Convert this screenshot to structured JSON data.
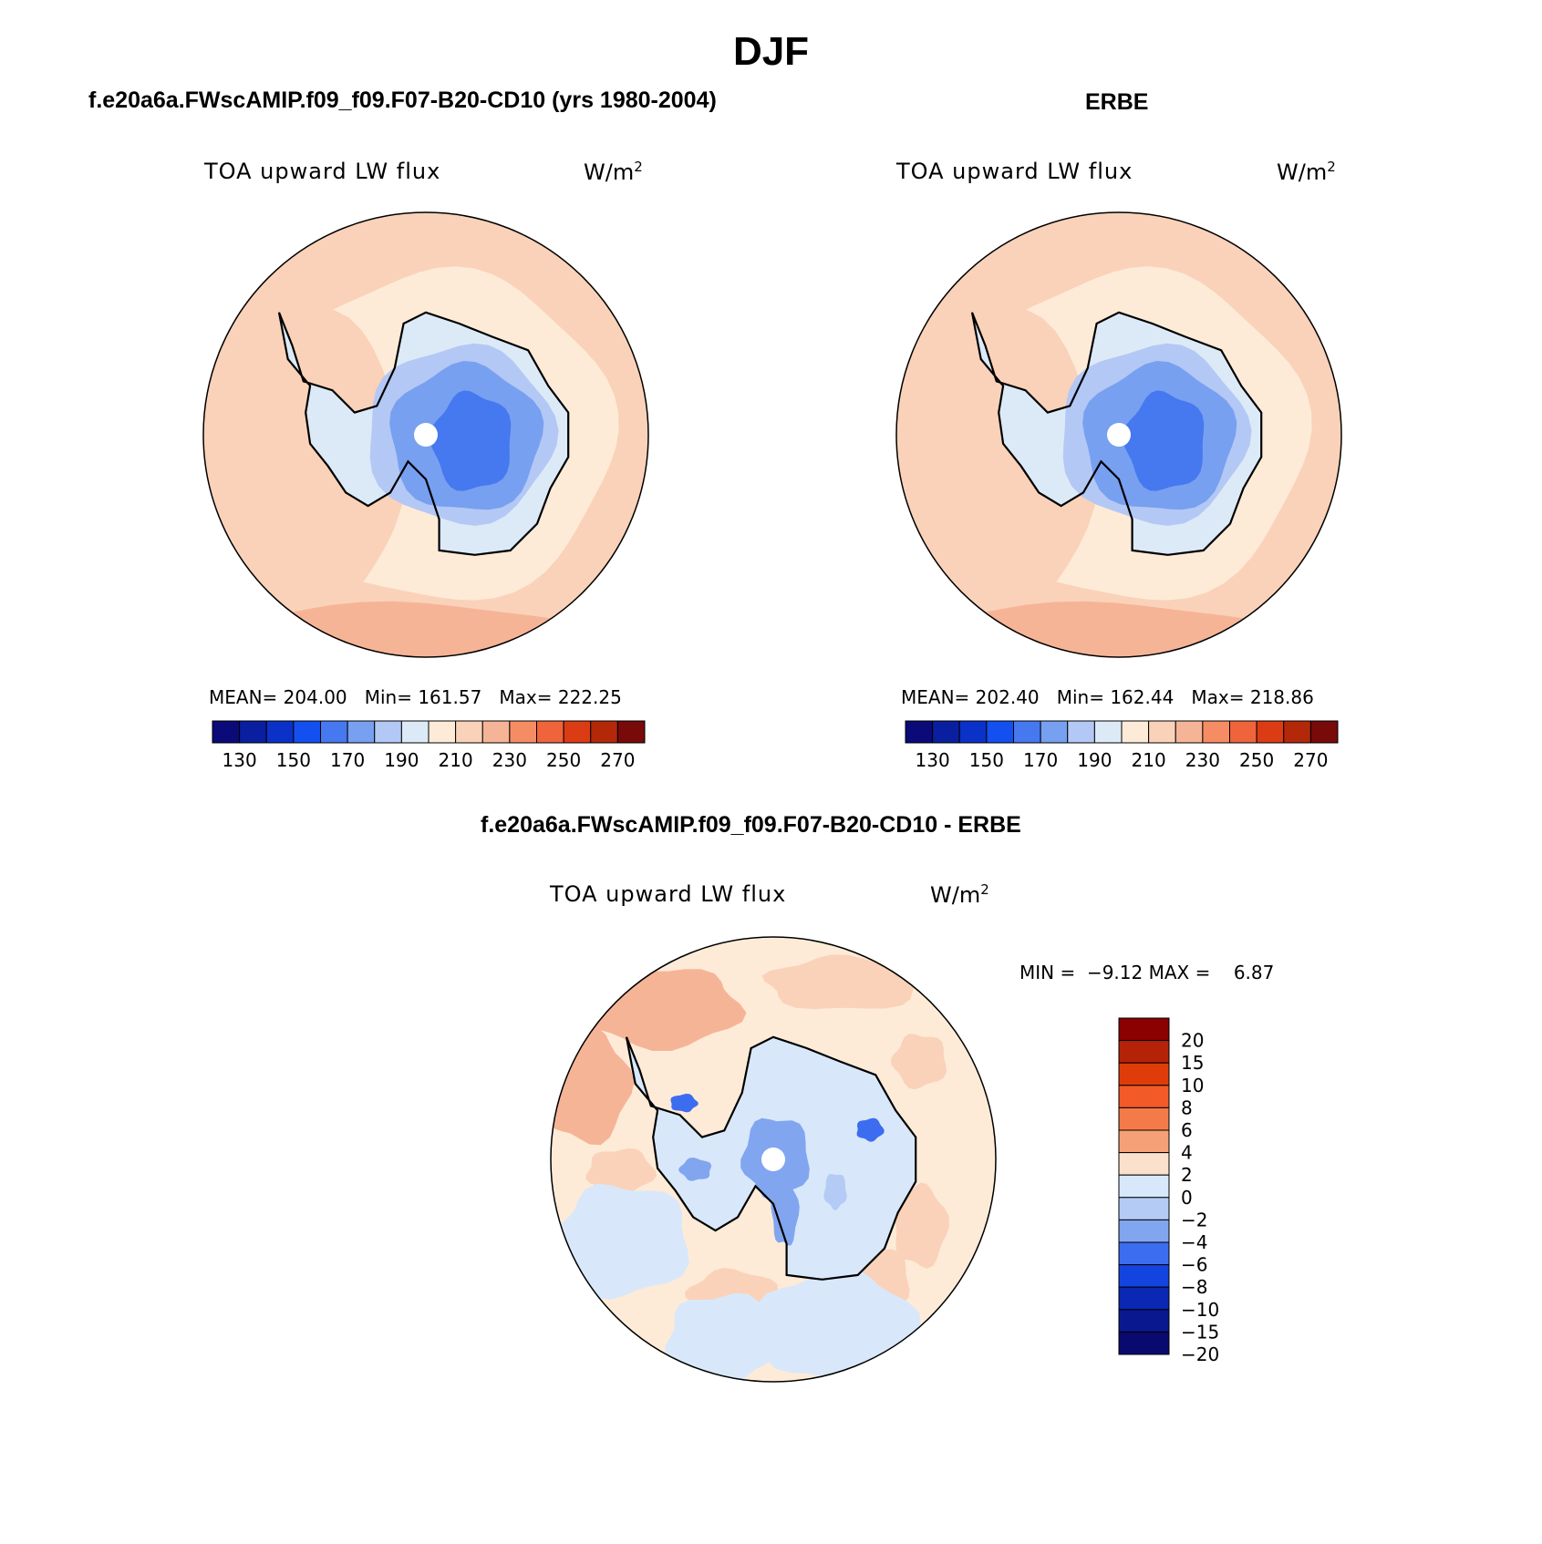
{
  "page": {
    "title": "DJF"
  },
  "chart_data": [
    {
      "type": "heatmap",
      "title": "f.e20a6a.FWscAMIP.f09_f09.F07-B20-CD10 (yrs 1980-2004)",
      "variable": "TOA upward LW flux",
      "units": "W/m",
      "units_sup": "2",
      "stats": {
        "mean_label": "MEAN=",
        "mean": "204.00",
        "min_label": "Min=",
        "min": "161.57",
        "max_label": "Max=",
        "max": "222.25"
      },
      "colorbar": {
        "ticks": [
          "130",
          "150",
          "170",
          "190",
          "210",
          "230",
          "250",
          "270"
        ],
        "levels": [
          120,
          130,
          140,
          150,
          160,
          170,
          180,
          190,
          200,
          210,
          220,
          230,
          240,
          250,
          260,
          270
        ],
        "colors": [
          "#0a0a78",
          "#0a1ea0",
          "#0a32c8",
          "#1450f0",
          "#4678f0",
          "#78a0f0",
          "#b4c8f5",
          "#dceaf8",
          "#fdebd8",
          "#fad2b9",
          "#f6b497",
          "#f58c64",
          "#f0643c",
          "#dc3c14",
          "#b4280a",
          "#780a0a"
        ]
      }
    },
    {
      "type": "heatmap",
      "title": "ERBE",
      "variable": "TOA upward LW flux",
      "units": "W/m",
      "units_sup": "2",
      "stats": {
        "mean_label": "MEAN=",
        "mean": "202.40",
        "min_label": "Min=",
        "min": "162.44",
        "max_label": "Max=",
        "max": "218.86"
      },
      "colorbar": {
        "ticks": [
          "130",
          "150",
          "170",
          "190",
          "210",
          "230",
          "250",
          "270"
        ],
        "levels": [
          120,
          130,
          140,
          150,
          160,
          170,
          180,
          190,
          200,
          210,
          220,
          230,
          240,
          250,
          260,
          270
        ],
        "colors": [
          "#0a0a78",
          "#0a1ea0",
          "#0a32c8",
          "#1450f0",
          "#4678f0",
          "#78a0f0",
          "#b4c8f5",
          "#dceaf8",
          "#fdebd8",
          "#fad2b9",
          "#f6b497",
          "#f58c64",
          "#f0643c",
          "#dc3c14",
          "#b4280a",
          "#780a0a"
        ]
      }
    },
    {
      "type": "heatmap",
      "title": "f.e20a6a.FWscAMIP.f09_f09.F07-B20-CD10 - ERBE",
      "variable": "TOA upward LW flux",
      "units": "W/m",
      "units_sup": "2",
      "stats": {
        "min_label": "MIN =",
        "min": "−9.12",
        "max_label": "MAX =",
        "max": "6.87"
      },
      "colorbar": {
        "ticks": [
          "20",
          "15",
          "10",
          "8",
          "6",
          "4",
          "2",
          "0",
          "−2",
          "−4",
          "−6",
          "−8",
          "−10",
          "−15",
          "−20"
        ],
        "colors": [
          "#8b0000",
          "#b42308",
          "#e03c0a",
          "#f25a28",
          "#f57a4a",
          "#f6a078",
          "#fbe0cc",
          "#d8e8fa",
          "#b4ccf5",
          "#82a5f0",
          "#3c6cf0",
          "#1444e0",
          "#0a28b4",
          "#0a1890",
          "#0a0a6e"
        ]
      }
    }
  ]
}
